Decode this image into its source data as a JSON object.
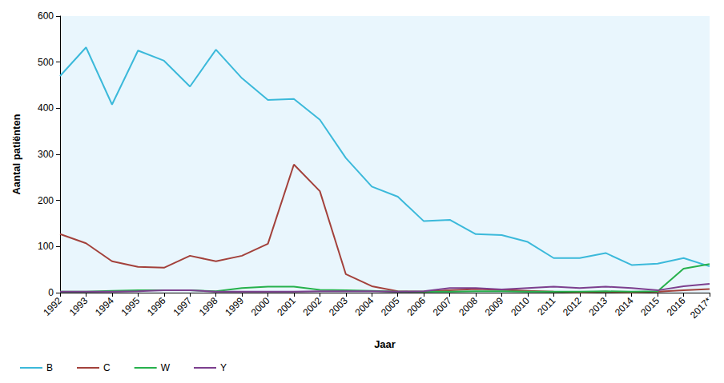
{
  "chart_data": {
    "type": "line",
    "x_label": "Jaar",
    "y_label": "Aantal patiënten",
    "categories": [
      "1992",
      "1993",
      "1994",
      "1995",
      "1996",
      "1997",
      "1998",
      "1999",
      "2000",
      "2001",
      "2002",
      "2003",
      "2004",
      "2005",
      "2006",
      "2007",
      "2008",
      "2009",
      "2010",
      "2011",
      "2012",
      "2013",
      "2014",
      "2015",
      "2016",
      "2017*"
    ],
    "series": [
      {
        "name": "B",
        "color": "#3bb9da",
        "values": [
          470,
          532,
          408,
          525,
          503,
          447,
          527,
          465,
          418,
          420,
          375,
          292,
          230,
          208,
          155,
          158,
          127,
          125,
          110,
          75,
          75,
          86,
          60,
          63,
          75,
          57
        ]
      },
      {
        "name": "C",
        "color": "#a3413b",
        "values": [
          127,
          107,
          68,
          56,
          54,
          80,
          68,
          80,
          106,
          278,
          220,
          40,
          14,
          3,
          2,
          5,
          8,
          6,
          4,
          2,
          1,
          2,
          1,
          2,
          5,
          8
        ]
      },
      {
        "name": "W",
        "color": "#26b14c",
        "values": [
          2,
          2,
          4,
          5,
          5,
          5,
          3,
          10,
          13,
          13,
          6,
          5,
          4,
          2,
          2,
          2,
          3,
          3,
          2,
          2,
          2,
          3,
          2,
          3,
          52,
          62
        ]
      },
      {
        "name": "Y",
        "color": "#7c3f8e",
        "values": [
          2,
          2,
          2,
          3,
          5,
          5,
          2,
          2,
          2,
          2,
          3,
          3,
          3,
          2,
          3,
          10,
          10,
          7,
          10,
          13,
          10,
          13,
          10,
          5,
          14,
          19
        ]
      }
    ],
    "ylim": [
      0,
      600
    ],
    "yticks": [
      0,
      100,
      200,
      300,
      400,
      500,
      600
    ],
    "grid": false,
    "legend": "bottom-left"
  }
}
